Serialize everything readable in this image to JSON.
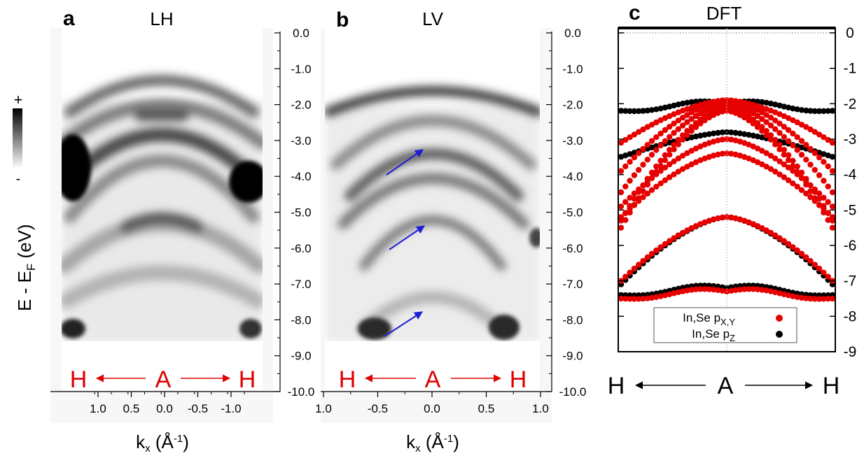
{
  "figure": {
    "colorbar": {
      "top_label": "+",
      "bottom_label": "-"
    },
    "ylabel": {
      "main": "E - E",
      "sub": "F",
      "unit": " (eV)"
    }
  },
  "chart_data": [
    {
      "panel": "a",
      "title": "LH",
      "type": "heatmap",
      "description_of_bands": "ARPES intensity map, grayscale",
      "xlabel": {
        "main": "k",
        "sub": "x",
        "unit_main": " (Å",
        "sup": "-1",
        "close": ")"
      },
      "xticks": [
        "1.0",
        "0.5",
        "0.0",
        "-0.5",
        "-1.0"
      ],
      "xlim": [
        1.2,
        -1.2
      ],
      "yticks": [
        "0.0",
        "-1.0",
        "-2.0",
        "-3.0",
        "-4.0",
        "-5.0",
        "-6.0",
        "-7.0",
        "-8.0",
        "-9.0",
        "-10.0"
      ],
      "ylim": [
        -10.0,
        0.0
      ],
      "path": {
        "left": "H",
        "center": "A",
        "right": "H"
      }
    },
    {
      "panel": "b",
      "title": "LV",
      "type": "heatmap",
      "description_of_bands": "ARPES intensity map, grayscale",
      "xlabel": {
        "main": "k",
        "sub": "x",
        "unit_main": " (Å",
        "sup": "-1",
        "close": ")"
      },
      "xticks": [
        "1.0",
        "-0.5",
        "0.0",
        "0.5",
        "1.0"
      ],
      "xlim": [
        -1.0,
        1.0
      ],
      "yticks": [
        "0.0",
        "-1.0",
        "-2.0",
        "-3.0",
        "-4.0",
        "-5.0",
        "-6.0",
        "-7.0",
        "-8.0",
        "-9.0",
        "-10.0"
      ],
      "ylim": [
        -10.0,
        0.0
      ],
      "path": {
        "left": "H",
        "center": "A",
        "right": "H"
      },
      "arrow_color": "#1f1fd6"
    },
    {
      "panel": "c",
      "title": "DFT",
      "type": "scatter",
      "yticks": [
        "0",
        "-1",
        "-2",
        "-3",
        "-4",
        "-5",
        "-6",
        "-7",
        "-8",
        "-9"
      ],
      "ylim": [
        -9,
        0
      ],
      "path": {
        "left": "H",
        "center": "A",
        "right": "H"
      },
      "legend": [
        {
          "label_main": "In,Se p",
          "label_sub": "X,Y",
          "color": "#e60000"
        },
        {
          "label_main": "In,Se p",
          "label_sub": "Z",
          "color": "#000000"
        }
      ],
      "legend_position": "bottom",
      "series": [
        {
          "orbital": "pz",
          "color": "#000000",
          "A": -2.0,
          "H": -2.2,
          "shape": "flat"
        },
        {
          "orbital": "pz",
          "color": "#000000",
          "A": -2.8,
          "H": -3.5,
          "shape": "bowl"
        },
        {
          "orbital": "pz",
          "color": "#000000",
          "A": -5.2,
          "H": -7.1,
          "shape": "dome"
        },
        {
          "orbital": "pz",
          "color": "#000000",
          "A": -7.2,
          "H": -7.4,
          "shape": "flat"
        },
        {
          "orbital": "pxy",
          "color": "#e60000",
          "A": -1.9,
          "H": -3.1,
          "shape": "dome"
        },
        {
          "orbital": "pxy",
          "color": "#e60000",
          "A": -1.9,
          "H": -3.9,
          "shape": "dome"
        },
        {
          "orbital": "pxy",
          "color": "#e60000",
          "A": -2.0,
          "H": -4.5,
          "shape": "dome"
        },
        {
          "orbital": "pxy",
          "color": "#e60000",
          "A": -2.1,
          "H": -5.3,
          "shape": "dome"
        },
        {
          "orbital": "pxy",
          "color": "#e60000",
          "A": -2.2,
          "H": -5.5,
          "shape": "dome"
        },
        {
          "orbital": "pxy",
          "color": "#e60000",
          "A": -3.0,
          "H": -4.9,
          "shape": "dome"
        },
        {
          "orbital": "pxy",
          "color": "#e60000",
          "A": -3.4,
          "H": -5.2,
          "shape": "dome"
        },
        {
          "orbital": "pxy",
          "color": "#e60000",
          "A": -5.2,
          "H": -7.0,
          "shape": "dome"
        },
        {
          "orbital": "pxy",
          "color": "#e60000",
          "A": -7.3,
          "H": -7.5,
          "shape": "flat"
        }
      ]
    }
  ]
}
